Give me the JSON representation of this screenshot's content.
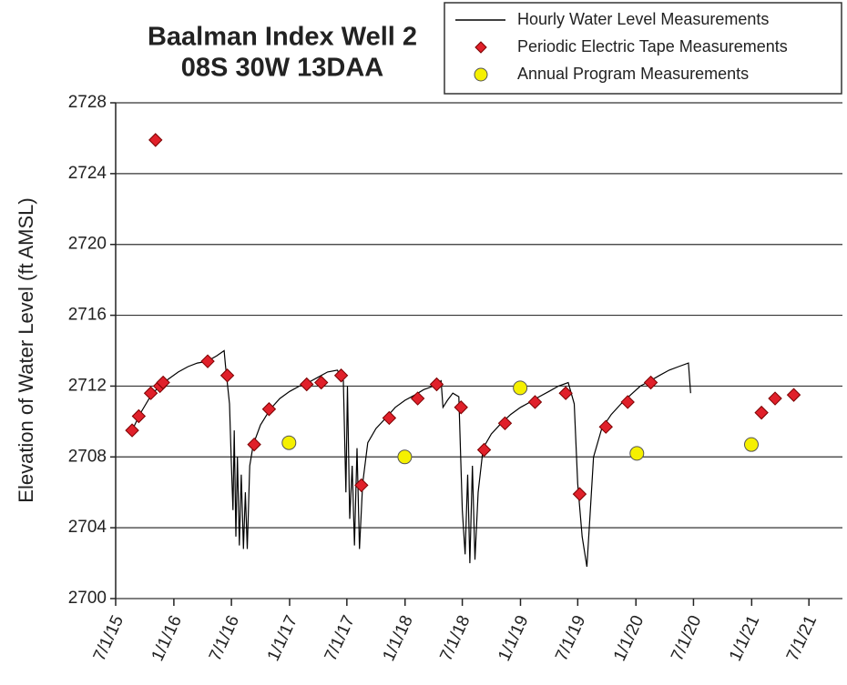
{
  "chart_data": {
    "type": "line",
    "title": "Baalman Index Well 2",
    "subtitle": "08S 30W 13DAA",
    "y_label": "Elevation of Water Level (ft AMSL)",
    "ylim": [
      2700,
      2728
    ],
    "yticks": [
      2700,
      2704,
      2708,
      2712,
      2716,
      2720,
      2724,
      2728
    ],
    "xlim": [
      "2015-07-01",
      "2021-10-15"
    ],
    "xticks": [
      {
        "value": "2015-07-01",
        "label": "7/1/15"
      },
      {
        "value": "2016-01-01",
        "label": "1/1/16"
      },
      {
        "value": "2016-07-01",
        "label": "7/1/16"
      },
      {
        "value": "2017-01-01",
        "label": "1/1/17"
      },
      {
        "value": "2017-07-01",
        "label": "7/1/17"
      },
      {
        "value": "2018-01-01",
        "label": "1/1/18"
      },
      {
        "value": "2018-07-01",
        "label": "7/1/18"
      },
      {
        "value": "2019-01-01",
        "label": "1/1/19"
      },
      {
        "value": "2019-07-01",
        "label": "7/1/19"
      },
      {
        "value": "2020-01-01",
        "label": "1/1/20"
      },
      {
        "value": "2020-07-01",
        "label": "7/1/20"
      },
      {
        "value": "2021-01-01",
        "label": "1/1/21"
      },
      {
        "value": "2021-07-01",
        "label": "7/1/21"
      }
    ],
    "grid": true,
    "legend": "top-right",
    "series": [
      {
        "name": "Hourly Water Level Measurements",
        "color": "#000000",
        "marker": "line",
        "x": [
          "2015-08-22",
          "2015-09-15",
          "2015-10-15",
          "2015-11-15",
          "2015-12-15",
          "2016-01-15",
          "2016-02-15",
          "2016-03-15",
          "2016-04-15",
          "2016-05-15",
          "2016-06-08",
          "2016-06-12",
          "2016-06-25",
          "2016-07-01",
          "2016-07-06",
          "2016-07-10",
          "2016-07-15",
          "2016-07-20",
          "2016-07-26",
          "2016-08-01",
          "2016-08-08",
          "2016-08-14",
          "2016-08-20",
          "2016-08-28",
          "2016-09-08",
          "2016-10-01",
          "2016-11-01",
          "2016-12-01",
          "2017-01-01",
          "2017-02-01",
          "2017-03-01",
          "2017-04-01",
          "2017-05-01",
          "2017-06-01",
          "2017-06-20",
          "2017-06-28",
          "2017-07-03",
          "2017-07-10",
          "2017-07-18",
          "2017-07-25",
          "2017-08-02",
          "2017-08-10",
          "2017-08-20",
          "2017-09-05",
          "2017-10-01",
          "2017-11-01",
          "2017-12-01",
          "2018-01-01",
          "2018-02-01",
          "2018-03-01",
          "2018-04-01",
          "2018-04-25",
          "2018-05-01",
          "2018-05-15",
          "2018-06-01",
          "2018-06-20",
          "2018-07-01",
          "2018-07-10",
          "2018-07-18",
          "2018-07-25",
          "2018-08-02",
          "2018-08-10",
          "2018-08-20",
          "2018-09-05",
          "2018-10-01",
          "2018-11-01",
          "2018-12-01",
          "2019-01-01",
          "2019-02-01",
          "2019-03-01",
          "2019-04-01",
          "2019-05-01",
          "2019-06-01",
          "2019-06-20",
          "2019-07-01",
          "2019-07-15",
          "2019-07-30",
          "2019-08-10",
          "2019-08-20",
          "2019-09-15",
          "2019-10-15",
          "2019-11-15",
          "2019-12-15",
          "2020-01-15",
          "2020-02-15",
          "2020-03-15",
          "2020-04-15",
          "2020-05-15",
          "2020-06-15",
          "2020-06-22"
        ],
        "values": [
          2709.5,
          2710.4,
          2711.3,
          2712.0,
          2712.4,
          2712.8,
          2713.1,
          2713.3,
          2713.4,
          2713.7,
          2714.0,
          2713.2,
          2711.0,
          2707.5,
          2705.0,
          2709.5,
          2703.5,
          2708.0,
          2703.0,
          2707.0,
          2702.8,
          2706.0,
          2702.8,
          2707.5,
          2708.7,
          2709.8,
          2710.7,
          2711.3,
          2711.7,
          2712.0,
          2712.2,
          2712.5,
          2712.8,
          2712.9,
          2712.3,
          2706.0,
          2712.0,
          2704.5,
          2707.5,
          2703.0,
          2708.5,
          2702.8,
          2706.5,
          2708.8,
          2709.6,
          2710.2,
          2710.8,
          2711.2,
          2711.5,
          2711.8,
          2712.0,
          2712.3,
          2710.8,
          2711.2,
          2711.6,
          2711.4,
          2705.0,
          2702.5,
          2707.0,
          2702.0,
          2707.5,
          2702.2,
          2706.0,
          2708.5,
          2709.3,
          2709.9,
          2710.4,
          2710.8,
          2711.1,
          2711.4,
          2711.7,
          2712.0,
          2712.2,
          2711.0,
          2706.5,
          2703.5,
          2701.8,
          2705.0,
          2708.0,
          2709.6,
          2710.4,
          2711.0,
          2711.5,
          2712.0,
          2712.3,
          2712.6,
          2712.9,
          2713.1,
          2713.3,
          2711.6
        ]
      },
      {
        "name": "Periodic Electric Tape Measurements",
        "color": "#e0202a",
        "marker": "diamond",
        "x": [
          "2015-08-22",
          "2015-09-12",
          "2015-10-20",
          "2015-11-18",
          "2015-11-28",
          "2015-11-04",
          "2016-04-17",
          "2016-06-18",
          "2016-09-11",
          "2016-10-28",
          "2017-02-24",
          "2017-04-11",
          "2017-06-13",
          "2017-08-16",
          "2017-11-12",
          "2018-02-10",
          "2018-04-11",
          "2018-06-27",
          "2018-09-08",
          "2018-11-13",
          "2019-02-16",
          "2019-05-24",
          "2019-07-07",
          "2019-09-28",
          "2019-12-06",
          "2020-02-17",
          "2021-02-01",
          "2021-03-16",
          "2021-05-14"
        ],
        "values": [
          2709.5,
          2710.3,
          2711.6,
          2712.0,
          2712.2,
          2725.9,
          2713.4,
          2712.6,
          2708.7,
          2710.7,
          2712.1,
          2712.2,
          2712.6,
          2706.4,
          2710.2,
          2711.3,
          2712.1,
          2710.8,
          2708.4,
          2709.9,
          2711.1,
          2711.6,
          2705.9,
          2709.7,
          2711.1,
          2712.2,
          2710.5,
          2711.3,
          2711.5
        ]
      },
      {
        "name": "Annual Program Measurements",
        "color": "#f5f000",
        "marker": "circle",
        "x": [
          "2016-12-30",
          "2017-12-31",
          "2018-12-31",
          "2020-01-04",
          "2020-12-31"
        ],
        "values": [
          2708.8,
          2708.0,
          2711.9,
          2708.2,
          2708.7
        ]
      }
    ]
  }
}
